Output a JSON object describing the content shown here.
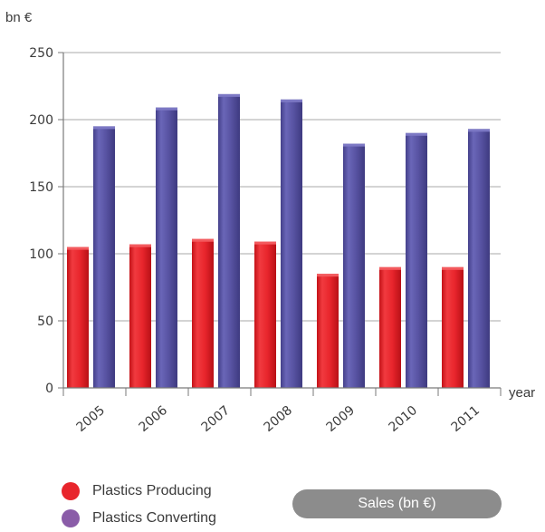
{
  "chart_data": {
    "type": "bar",
    "ylabel": "bn €",
    "xlabel": "year",
    "ylim": [
      0,
      250
    ],
    "yticks": [
      0,
      50,
      100,
      150,
      200,
      250
    ],
    "grid": true,
    "categories": [
      "2005",
      "2006",
      "2007",
      "2008",
      "2009",
      "2010",
      "2011"
    ],
    "series": [
      {
        "name": "Plastics Producing",
        "color": "#e8252c",
        "values": [
          105,
          107,
          111,
          109,
          85,
          90,
          90
        ]
      },
      {
        "name": "Plastics Converting",
        "color": "#5752a1",
        "values": [
          195,
          209,
          219,
          215,
          182,
          190,
          193
        ]
      }
    ]
  },
  "legend": {
    "items": [
      {
        "label": "Plastics Producing",
        "color": "#e8252c"
      },
      {
        "label": "Plastics Converting",
        "color": "#8a5ca8"
      }
    ]
  },
  "badge": {
    "label": "Sales (bn €)"
  }
}
